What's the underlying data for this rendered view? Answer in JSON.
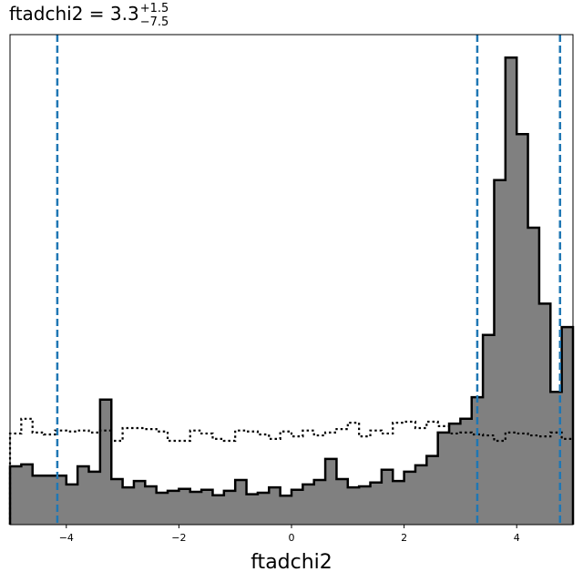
{
  "chart_data": {
    "type": "histogram",
    "title": {
      "name": "ftadchi2",
      "equals": " = ",
      "value": "3.3",
      "upper": "+1.5",
      "lower": "−7.5"
    },
    "xlabel": "ftadchi2",
    "ylabel": "",
    "xlim": [
      -5,
      5
    ],
    "ylim": [
      0,
      1
    ],
    "xticks": [
      -4,
      -2,
      0,
      2,
      4
    ],
    "xtick_labels": [
      "−4",
      "−2",
      "0",
      "2",
      "4"
    ],
    "grid": false,
    "legend": "none",
    "bin_edges": [
      -5.0,
      -4.8,
      -4.6,
      -4.4,
      -4.2,
      -4.0,
      -3.8,
      -3.6,
      -3.4,
      -3.2,
      -3.0,
      -2.8,
      -2.6,
      -2.4,
      -2.2,
      -2.0,
      -1.8,
      -1.6,
      -1.4,
      -1.2,
      -1.0,
      -0.8,
      -0.6,
      -0.4,
      -0.2,
      0.0,
      0.2,
      0.4,
      0.6,
      0.8,
      1.0,
      1.2,
      1.4,
      1.6,
      1.8,
      2.0,
      2.2,
      2.4,
      2.6,
      2.8,
      3.0,
      3.2,
      3.4,
      3.6,
      3.8,
      4.0,
      4.2,
      4.4,
      4.6,
      4.8,
      5.0
    ],
    "series": [
      {
        "style": "filled",
        "color": "#808080",
        "edge_color": "#000000",
        "values": [
          0.119,
          0.123,
          0.1,
          0.1,
          0.1,
          0.082,
          0.119,
          0.108,
          0.255,
          0.093,
          0.076,
          0.089,
          0.078,
          0.065,
          0.069,
          0.073,
          0.067,
          0.071,
          0.06,
          0.069,
          0.091,
          0.062,
          0.065,
          0.076,
          0.059,
          0.071,
          0.082,
          0.091,
          0.134,
          0.093,
          0.076,
          0.078,
          0.086,
          0.112,
          0.089,
          0.108,
          0.121,
          0.14,
          0.188,
          0.206,
          0.216,
          0.26,
          0.387,
          0.703,
          0.953,
          0.797,
          0.606,
          0.451,
          0.271,
          0.403
        ]
      },
      {
        "style": "dotted",
        "color": "#000000",
        "values": [
          0.186,
          0.216,
          0.188,
          0.184,
          0.192,
          0.19,
          0.192,
          0.188,
          0.192,
          0.171,
          0.197,
          0.197,
          0.195,
          0.19,
          0.171,
          0.171,
          0.192,
          0.186,
          0.175,
          0.171,
          0.192,
          0.19,
          0.184,
          0.175,
          0.19,
          0.18,
          0.192,
          0.182,
          0.188,
          0.195,
          0.208,
          0.18,
          0.192,
          0.186,
          0.208,
          0.21,
          0.197,
          0.21,
          0.201,
          0.186,
          0.188,
          0.184,
          0.182,
          0.171,
          0.188,
          0.186,
          0.182,
          0.18,
          0.188,
          0.175
        ]
      }
    ],
    "vlines": [
      {
        "x": -4.16,
        "color": "#1f77b4",
        "style": "dashed"
      },
      {
        "x": 3.3,
        "color": "#1f77b4",
        "style": "dashed"
      },
      {
        "x": 4.77,
        "color": "#1f77b4",
        "style": "dashed"
      }
    ]
  }
}
